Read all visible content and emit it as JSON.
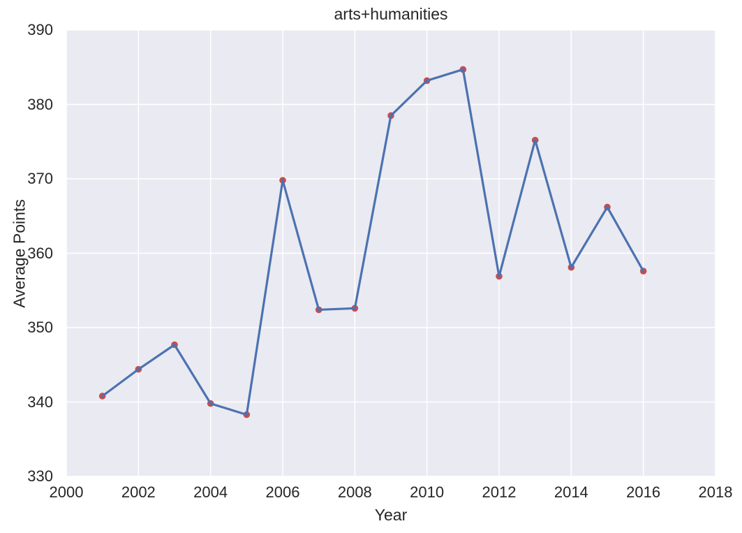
{
  "chart_data": {
    "type": "line",
    "title": "arts+humanities",
    "xlabel": "Year",
    "ylabel": "Average Points",
    "x": [
      2001,
      2002,
      2003,
      2004,
      2005,
      2006,
      2007,
      2008,
      2009,
      2010,
      2011,
      2012,
      2013,
      2014,
      2015,
      2016
    ],
    "values": [
      340.8,
      344.4,
      347.7,
      339.8,
      338.3,
      369.8,
      352.4,
      352.6,
      378.5,
      383.2,
      384.7,
      356.9,
      375.2,
      358.1,
      366.2,
      357.6
    ],
    "xlim": [
      2000,
      2018
    ],
    "ylim": [
      330,
      390
    ],
    "xticks": [
      2000,
      2002,
      2004,
      2006,
      2008,
      2010,
      2012,
      2014,
      2016,
      2018
    ],
    "yticks": [
      330,
      340,
      350,
      360,
      370,
      380,
      390
    ],
    "grid": true,
    "legend_position": "none",
    "style": {
      "plot_bg": "#eaeaf2",
      "grid_color": "#ffffff",
      "grid_width": 1.5,
      "line_color": "#4c72b0",
      "line_width": 3.2,
      "marker_color": "#c44e52",
      "marker_radius": 4.8,
      "text_color": "#262626",
      "figure_bg": "#ffffff"
    }
  }
}
